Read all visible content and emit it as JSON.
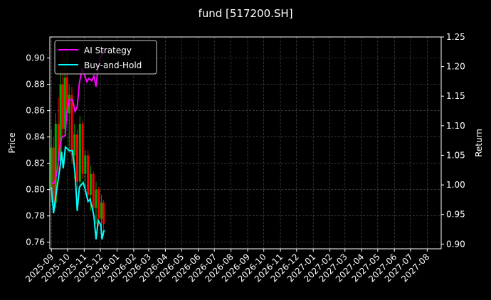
{
  "chart_data": {
    "type": "line",
    "title": "fund [517200.SH]",
    "ylabel": "Price",
    "y2label": "Return",
    "xlim": [
      "2025-08-29",
      "2027-08-27"
    ],
    "ylim": [
      0.755,
      0.916
    ],
    "y2lim": [
      0.892,
      1.25
    ],
    "grid": true,
    "legend_position": "top-left",
    "x_ticks": [
      "2025-09",
      "2025-10",
      "2025-11",
      "2025-12",
      "2026-01",
      "2026-02",
      "2026-03",
      "2026-04",
      "2026-05",
      "2026-06",
      "2026-07",
      "2026-08",
      "2026-09",
      "2026-10",
      "2026-11",
      "2026-12",
      "2027-01",
      "2027-02",
      "2027-03",
      "2027-04",
      "2027-05",
      "2027-06",
      "2027-07",
      "2027-08"
    ],
    "y_ticks": [
      "0.76",
      "0.78",
      "0.80",
      "0.82",
      "0.84",
      "0.86",
      "0.88",
      "0.90"
    ],
    "y2_ticks": [
      "0.90",
      "0.95",
      "1.00",
      "1.05",
      "1.10",
      "1.15",
      "1.20",
      "1.25"
    ],
    "candles": [
      {
        "date": "2025-09-01",
        "open": 0.8,
        "high": 0.846,
        "low": 0.79,
        "close": 0.832
      },
      {
        "date": "2025-09-05",
        "open": 0.832,
        "high": 0.84,
        "low": 0.782,
        "close": 0.79
      },
      {
        "date": "2025-09-09",
        "open": 0.79,
        "high": 0.858,
        "low": 0.786,
        "close": 0.85
      },
      {
        "date": "2025-09-14",
        "open": 0.85,
        "high": 0.87,
        "low": 0.815,
        "close": 0.822
      },
      {
        "date": "2025-09-18",
        "open": 0.822,
        "high": 0.892,
        "low": 0.818,
        "close": 0.88
      },
      {
        "date": "2025-09-22",
        "open": 0.88,
        "high": 0.905,
        "low": 0.84,
        "close": 0.846
      },
      {
        "date": "2025-09-26",
        "open": 0.846,
        "high": 0.9,
        "low": 0.842,
        "close": 0.885
      },
      {
        "date": "2025-09-30",
        "open": 0.885,
        "high": 0.905,
        "low": 0.852,
        "close": 0.858
      },
      {
        "date": "2025-10-04",
        "open": 0.858,
        "high": 0.88,
        "low": 0.828,
        "close": 0.872
      },
      {
        "date": "2025-10-09",
        "open": 0.872,
        "high": 0.878,
        "low": 0.82,
        "close": 0.826
      },
      {
        "date": "2025-10-14",
        "open": 0.826,
        "high": 0.85,
        "low": 0.808,
        "close": 0.842
      },
      {
        "date": "2025-10-19",
        "open": 0.842,
        "high": 0.846,
        "low": 0.8,
        "close": 0.806
      },
      {
        "date": "2025-10-24",
        "open": 0.806,
        "high": 0.856,
        "low": 0.802,
        "close": 0.85
      },
      {
        "date": "2025-10-29",
        "open": 0.85,
        "high": 0.852,
        "low": 0.808,
        "close": 0.812
      },
      {
        "date": "2025-11-03",
        "open": 0.812,
        "high": 0.83,
        "low": 0.8,
        "close": 0.826
      },
      {
        "date": "2025-11-08",
        "open": 0.826,
        "high": 0.83,
        "low": 0.79,
        "close": 0.796
      },
      {
        "date": "2025-11-13",
        "open": 0.796,
        "high": 0.818,
        "low": 0.784,
        "close": 0.812
      },
      {
        "date": "2025-11-18",
        "open": 0.812,
        "high": 0.814,
        "low": 0.78,
        "close": 0.786
      },
      {
        "date": "2025-11-23",
        "open": 0.786,
        "high": 0.806,
        "low": 0.774,
        "close": 0.8
      },
      {
        "date": "2025-11-28",
        "open": 0.8,
        "high": 0.802,
        "low": 0.772,
        "close": 0.778
      },
      {
        "date": "2025-12-03",
        "open": 0.778,
        "high": 0.796,
        "low": 0.772,
        "close": 0.79
      },
      {
        "date": "2025-12-07",
        "open": 0.79,
        "high": 0.792,
        "low": 0.77,
        "close": 0.774
      }
    ],
    "series": [
      {
        "name": "AI Strategy",
        "color": "#ff00ff",
        "axis": "right",
        "x": [
          "2025-09-01",
          "2025-09-07",
          "2025-09-12",
          "2025-09-16",
          "2025-09-20",
          "2025-09-27",
          "2025-09-29",
          "2025-10-04",
          "2025-10-10",
          "2025-10-15",
          "2025-10-19",
          "2025-10-23",
          "2025-10-28",
          "2025-11-01",
          "2025-11-06",
          "2025-11-10",
          "2025-11-15",
          "2025-11-19",
          "2025-11-23",
          "2025-11-25",
          "2025-11-30",
          "2025-12-07"
        ],
        "values": [
          1.002,
          1.004,
          1.024,
          1.06,
          1.08,
          1.084,
          1.12,
          1.144,
          1.144,
          1.124,
          1.132,
          1.172,
          1.196,
          1.188,
          1.174,
          1.18,
          1.176,
          1.184,
          1.166,
          1.184,
          1.212,
          1.228
        ]
      },
      {
        "name": "Buy-and-Hold",
        "color": "#00ffff",
        "axis": "right",
        "x": [
          "2025-09-01",
          "2025-09-05",
          "2025-09-09",
          "2025-09-14",
          "2025-09-18",
          "2025-09-20",
          "2025-09-23",
          "2025-09-27",
          "2025-10-04",
          "2025-10-10",
          "2025-10-15",
          "2025-10-19",
          "2025-10-23",
          "2025-10-30",
          "2025-11-03",
          "2025-11-08",
          "2025-11-12",
          "2025-11-19",
          "2025-11-23",
          "2025-11-27",
          "2025-12-02",
          "2025-12-04",
          "2025-12-08"
        ],
        "values": [
          0.996,
          0.952,
          0.98,
          1.012,
          1.036,
          1.056,
          1.028,
          1.064,
          1.058,
          1.058,
          1.02,
          0.956,
          0.996,
          1.004,
          0.992,
          0.972,
          0.976,
          0.948,
          0.908,
          0.94,
          0.932,
          0.908,
          0.924
        ]
      }
    ],
    "colors": {
      "up": "#00aa00",
      "down": "#ff0000",
      "grid": "#555555"
    }
  }
}
